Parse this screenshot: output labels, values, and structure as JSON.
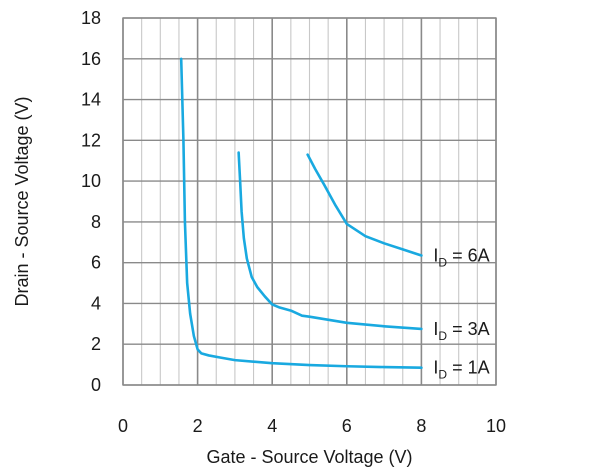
{
  "chart_data": {
    "type": "line",
    "title": "",
    "xlabel": "Gate - Source Voltage  (V)",
    "ylabel": "Drain - Source Voltage  (V)",
    "xlim": [
      0,
      10
    ],
    "ylim": [
      0,
      18
    ],
    "xticks": [
      0,
      2,
      4,
      6,
      8,
      10
    ],
    "yticks": [
      0,
      2,
      4,
      6,
      8,
      10,
      12,
      14,
      16,
      18
    ],
    "x_minor_step": 0.5,
    "y_major_step": 2,
    "grid": true,
    "line_color": "#19A9E0",
    "series": [
      {
        "label_prefix": "I",
        "label_subscript": "D",
        "label_suffix": " = 1A",
        "points": [
          [
            1.56,
            16.0
          ],
          [
            1.62,
            12.0
          ],
          [
            1.66,
            8.0
          ],
          [
            1.72,
            5.0
          ],
          [
            1.8,
            3.5
          ],
          [
            1.9,
            2.4
          ],
          [
            2.0,
            1.75
          ],
          [
            2.1,
            1.55
          ],
          [
            2.3,
            1.45
          ],
          [
            2.6,
            1.35
          ],
          [
            3.0,
            1.22
          ],
          [
            4.0,
            1.07
          ],
          [
            5.0,
            0.98
          ],
          [
            6.0,
            0.92
          ],
          [
            7.0,
            0.88
          ],
          [
            8.0,
            0.85
          ]
        ]
      },
      {
        "label_prefix": "I",
        "label_subscript": "D",
        "label_suffix": " = 3A",
        "points": [
          [
            3.1,
            11.4
          ],
          [
            3.14,
            10.0
          ],
          [
            3.18,
            8.5
          ],
          [
            3.24,
            7.2
          ],
          [
            3.32,
            6.2
          ],
          [
            3.45,
            5.3
          ],
          [
            3.6,
            4.8
          ],
          [
            3.8,
            4.35
          ],
          [
            4.0,
            3.95
          ],
          [
            4.2,
            3.8
          ],
          [
            4.5,
            3.65
          ],
          [
            4.8,
            3.4
          ],
          [
            5.0,
            3.35
          ],
          [
            6.0,
            3.05
          ],
          [
            7.0,
            2.88
          ],
          [
            8.0,
            2.75
          ]
        ]
      },
      {
        "label_prefix": "I",
        "label_subscript": "D",
        "label_suffix": " = 6A",
        "points": [
          [
            4.95,
            11.3
          ],
          [
            5.15,
            10.6
          ],
          [
            5.4,
            9.8
          ],
          [
            5.7,
            8.8
          ],
          [
            6.0,
            7.9
          ],
          [
            6.5,
            7.3
          ],
          [
            7.0,
            6.95
          ],
          [
            7.5,
            6.65
          ],
          [
            8.0,
            6.35
          ]
        ]
      }
    ]
  }
}
